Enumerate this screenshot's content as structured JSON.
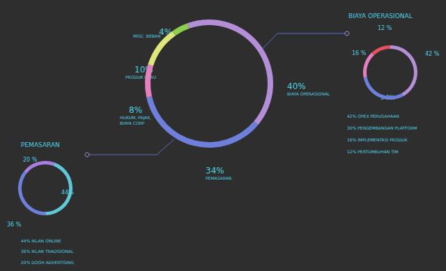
{
  "chart_data": [
    {
      "type": "pie",
      "categories": [
        "BIAYA OPERASIONAL",
        "PEMASARAN",
        "HUKUM, PAJAK,\nBIAYA CORP",
        "PRODUK BARU",
        "MISC. BEBAN"
      ],
      "values": [
        40,
        34,
        8,
        10,
        4
      ],
      "value_labels": [
        "40%",
        "34%",
        "8%",
        "10%",
        "4%"
      ],
      "colors": [
        "#b48fd8",
        "#6f7fdc",
        "#e67fc0",
        "#dde67a",
        "#8ccf4e"
      ]
    },
    {
      "type": "pie",
      "title": "BIAYA OPERASIONAL",
      "values": [
        42,
        30,
        16,
        12
      ],
      "value_labels": [
        "42 %",
        "3 0%",
        "16 %",
        "12 %"
      ],
      "colors": [
        "#b48fd8",
        "#6f7fdc",
        "#e67fc0",
        "#e4525e"
      ],
      "annotations": [
        "42% OPEX PERUSAHAAN",
        "30% PENGEMBANGAN PLATFORM",
        "16% IMPLEMENTASI PRODUK",
        "12% PERTUMBUHAN TIM"
      ]
    },
    {
      "type": "pie",
      "title": "PEMASARAN",
      "values": [
        44,
        36,
        20
      ],
      "value_labels": [
        "44%",
        "36 %",
        "20 %"
      ],
      "colors": [
        "#5fc8d8",
        "#6f7fdc",
        "#a77fe0"
      ],
      "annotations": [
        "44% IKLAN ONLINE",
        "36% IKLAN TRADISIONAL",
        "20% DOOH ADVERTISING"
      ]
    }
  ]
}
